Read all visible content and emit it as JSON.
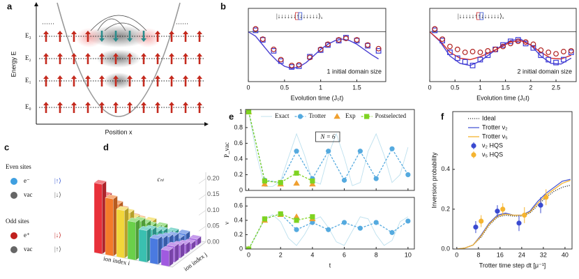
{
  "panel_labels": [
    "a",
    "b",
    "c",
    "d",
    "e",
    "f"
  ],
  "diagram": {
    "ylabel": "Energy E",
    "xlabel": "Position x",
    "levels": [
      "E₃",
      "E₂",
      "E₁",
      "E₀"
    ]
  },
  "sites": [
    {
      "title": "Even sites",
      "items": [
        {
          "particle": "e⁻",
          "state": "|↑⟩",
          "color": "#3f9fe0",
          "state_color": "#2a4fd0"
        },
        {
          "particle": "vac",
          "state": "|↓⟩",
          "color": "#666666",
          "state_color": "#555555"
        }
      ]
    },
    {
      "title": "Odd sites",
      "items": [
        {
          "particle": "e⁺",
          "state": "|↓⟩",
          "color": "#c0201e",
          "state_color": "#c0201e"
        },
        {
          "particle": "vac",
          "state": "|↑⟩",
          "color": "#666666",
          "state_color": "#555555"
        }
      ]
    }
  ],
  "chart_data": [
    {
      "type": "line",
      "xlabel": "Evolution time (J₀t)",
      "annotation": "1 initial domain size",
      "ket": "|↓↓↓↓↓↓↑↓↓↓↓↓↓⟩ₓ",
      "xlim": [
        0,
        1.9
      ],
      "ylim": [
        0,
        1
      ],
      "xticks": [
        0,
        0.5,
        1,
        1.5
      ],
      "hline": 0.68,
      "series": [
        {
          "color": "#4a3fd1",
          "line": "solid",
          "width": 1.4,
          "x": [
            0,
            0.1,
            0.2,
            0.3,
            0.4,
            0.5,
            0.6,
            0.7,
            0.8,
            0.9,
            1,
            1.1,
            1.2,
            1.3,
            1.4,
            1.5,
            1.6,
            1.7,
            1.8
          ],
          "values": [
            0.68,
            0.62,
            0.5,
            0.38,
            0.28,
            0.21,
            0.18,
            0.2,
            0.26,
            0.35,
            0.44,
            0.51,
            0.56,
            0.58,
            0.56,
            0.51,
            0.44,
            0.37,
            0.31
          ]
        },
        {
          "color": "#3b3bd6",
          "marker": "square",
          "hollow": true,
          "x": [
            0.1,
            0.2,
            0.35,
            0.45,
            0.6,
            0.7,
            0.85,
            1,
            1.1,
            1.25,
            1.35,
            1.5,
            1.65,
            1.8
          ],
          "values": [
            0.7,
            0.57,
            0.42,
            0.28,
            0.2,
            0.21,
            0.34,
            0.43,
            0.5,
            0.56,
            0.6,
            0.56,
            0.49,
            0.42
          ]
        },
        {
          "color": "#b0201e",
          "marker": "circle",
          "hollow": true,
          "x": [
            0.1,
            0.2,
            0.35,
            0.45,
            0.6,
            0.7,
            0.85,
            1,
            1.1,
            1.25,
            1.35,
            1.5,
            1.65,
            1.8
          ],
          "values": [
            0.72,
            0.58,
            0.44,
            0.3,
            0.22,
            0.23,
            0.33,
            0.44,
            0.51,
            0.57,
            0.59,
            0.57,
            0.5,
            0.45
          ]
        }
      ]
    },
    {
      "type": "line",
      "xlabel": "Evolution time (J₀t)",
      "annotation": "2 initial domain size",
      "ket": "|↓↓↓↓↓↑↑↓↓↓↓↓↓⟩ₓ",
      "xlim": [
        0,
        2.9
      ],
      "ylim": [
        0,
        1
      ],
      "xticks": [
        0,
        0.5,
        1,
        1.5,
        2,
        2.5
      ],
      "hline": 0.68,
      "series": [
        {
          "color": "#4a3fd1",
          "line": "solid",
          "width": 1.4,
          "x": [
            0,
            0.2,
            0.4,
            0.6,
            0.8,
            1,
            1.2,
            1.4,
            1.6,
            1.8,
            2,
            2.2,
            2.4,
            2.6,
            2.8
          ],
          "values": [
            0.68,
            0.55,
            0.35,
            0.25,
            0.22,
            0.28,
            0.38,
            0.48,
            0.56,
            0.58,
            0.5,
            0.35,
            0.25,
            0.24,
            0.32
          ]
        },
        {
          "color": "#d8302a",
          "line": "solid",
          "width": 1.4,
          "x": [
            0,
            0.2,
            0.4,
            0.6,
            0.8,
            1,
            1.2,
            1.4,
            1.6,
            1.8,
            2,
            2.2,
            2.4,
            2.6,
            2.8
          ],
          "values": [
            0.68,
            0.56,
            0.4,
            0.32,
            0.3,
            0.34,
            0.4,
            0.47,
            0.54,
            0.56,
            0.5,
            0.4,
            0.32,
            0.31,
            0.36
          ]
        },
        {
          "color": "#3b3bd6",
          "marker": "square",
          "hollow": true,
          "x": [
            0.1,
            0.25,
            0.4,
            0.55,
            0.7,
            0.85,
            1,
            1.15,
            1.3,
            1.45,
            1.6,
            1.75,
            1.9,
            2.05,
            2.2,
            2.35,
            2.5,
            2.65,
            2.8
          ],
          "values": [
            0.7,
            0.56,
            0.4,
            0.32,
            0.27,
            0.22,
            0.3,
            0.36,
            0.44,
            0.5,
            0.55,
            0.57,
            0.52,
            0.46,
            0.36,
            0.3,
            0.26,
            0.3,
            0.4
          ]
        },
        {
          "color": "#b0201e",
          "marker": "circle",
          "hollow": true,
          "x": [
            0.1,
            0.25,
            0.4,
            0.55,
            0.7,
            0.85,
            1,
            1.15,
            1.3,
            1.45,
            1.6,
            1.75,
            1.9,
            2.05,
            2.2,
            2.35,
            2.5,
            2.65,
            2.8
          ],
          "values": [
            0.72,
            0.58,
            0.48,
            0.44,
            0.4,
            0.41,
            0.4,
            0.42,
            0.44,
            0.48,
            0.52,
            0.55,
            0.54,
            0.51,
            0.43,
            0.4,
            0.38,
            0.41,
            0.42
          ]
        }
      ]
    },
    {
      "type": "line",
      "ylabel": "P_vac",
      "annotation": "N = 6",
      "legend": "top",
      "xticklabels": false,
      "xlim": [
        -0.2,
        10.4
      ],
      "ylim": [
        0,
        1.03
      ],
      "xticks": [
        0,
        2,
        4,
        6,
        8,
        10
      ],
      "yticks": [
        0,
        0.2,
        0.4,
        0.6,
        0.8,
        1
      ],
      "series": [
        {
          "name": "Exact",
          "color": "#bde0ee",
          "line": "solid",
          "width": 0.9,
          "x": [
            0,
            0.5,
            1,
            1.5,
            2,
            2.5,
            3,
            3.5,
            4,
            4.5,
            5,
            5.5,
            6,
            6.5,
            7,
            7.5,
            8,
            8.5,
            9,
            9.5,
            10
          ],
          "values": [
            1,
            0.45,
            0.05,
            0.05,
            0.12,
            0.42,
            0.72,
            0.45,
            0.12,
            0.08,
            0.45,
            0.72,
            0.42,
            0.06,
            0.1,
            0.5,
            0.72,
            0.45,
            0.1,
            0.2,
            0.55
          ]
        },
        {
          "name": "Trotter",
          "color": "#55aadf",
          "line": "dashed",
          "marker": "circle",
          "x": [
            0,
            1,
            2,
            3,
            4,
            5,
            6,
            7,
            8,
            9,
            10
          ],
          "values": [
            1,
            0.13,
            0.1,
            0.5,
            0.15,
            0.5,
            0.13,
            0.5,
            0.15,
            0.53,
            0.2
          ]
        },
        {
          "name": "Exp",
          "color": "#f0a030",
          "marker": "triangle",
          "x": [
            0,
            1,
            2,
            3,
            4
          ],
          "values": [
            1,
            0.08,
            0.08,
            0.09,
            0.08
          ]
        },
        {
          "name": "Postselected",
          "color": "#7ed321",
          "line": "dashed",
          "marker": "square",
          "x": [
            0,
            1,
            2,
            3,
            4
          ],
          "values": [
            1,
            0.12,
            0.1,
            0.22,
            0.12
          ]
        }
      ]
    },
    {
      "type": "line",
      "ylabel": "ν",
      "xlabel": "t",
      "xlim": [
        -0.2,
        10.4
      ],
      "ylim": [
        0,
        0.72
      ],
      "xticks": [
        0,
        2,
        4,
        6,
        8,
        10
      ],
      "yticks": [
        0,
        0.2,
        0.4,
        0.6
      ],
      "series": [
        {
          "color": "#bde0ee",
          "line": "solid",
          "width": 0.9,
          "x": [
            0,
            0.5,
            1,
            1.5,
            2,
            2.5,
            3,
            3.5,
            4,
            4.5,
            5,
            5.5,
            6,
            6.5,
            7,
            7.5,
            8,
            8.5,
            9,
            9.5,
            10
          ],
          "values": [
            0,
            0.2,
            0.42,
            0.48,
            0.38,
            0.15,
            0.05,
            0.2,
            0.4,
            0.45,
            0.3,
            0.1,
            0.05,
            0.25,
            0.45,
            0.42,
            0.2,
            0.05,
            0.12,
            0.38,
            0.45
          ]
        },
        {
          "color": "#55aadf",
          "line": "dashed",
          "marker": "circle",
          "x": [
            0,
            1,
            2,
            3,
            4,
            5,
            6,
            7,
            8,
            9,
            10
          ],
          "values": [
            0,
            0.42,
            0.49,
            0.27,
            0.37,
            0.27,
            0.37,
            0.29,
            0.37,
            0.23,
            0.39
          ]
        },
        {
          "color": "#f0a030",
          "marker": "triangle",
          "x": [
            0,
            1,
            2,
            3,
            4
          ],
          "values": [
            0,
            0.4,
            0.48,
            0.45,
            0.42
          ]
        },
        {
          "color": "#7ed321",
          "line": "dashed",
          "marker": "square",
          "x": [
            0,
            1,
            2,
            3,
            4
          ],
          "values": [
            0,
            0.42,
            0.49,
            0.4,
            0.45
          ]
        }
      ]
    },
    {
      "type": "line",
      "ylabel": "Inversion probability",
      "xlabel": "Trotter time step dt [μ⁻¹]",
      "legend": "upper left",
      "xlim": [
        -1.5,
        42.6
      ],
      "ylim": [
        0,
        0.69
      ],
      "xticks": [
        0,
        8,
        16,
        24,
        32,
        40
      ],
      "yticks": [
        {
          "value": 0,
          "label": "0.0"
        },
        0.2,
        0.4
      ],
      "series": [
        {
          "name": "Ideal",
          "color": "#333333",
          "line": "dotted",
          "x": [
            0,
            3,
            6,
            9,
            12,
            15,
            18,
            21,
            24,
            27,
            30,
            33,
            36,
            39,
            42
          ],
          "values": [
            0,
            0.005,
            0.02,
            0.06,
            0.12,
            0.16,
            0.17,
            0.165,
            0.165,
            0.18,
            0.22,
            0.26,
            0.29,
            0.31,
            0.32
          ]
        },
        {
          "name": "Trotter ν₂",
          "color": "#4a5ad6",
          "line": "solid",
          "x": [
            0,
            3,
            6,
            9,
            12,
            15,
            18,
            21,
            24,
            27,
            30,
            33,
            36,
            39,
            42
          ],
          "values": [
            0,
            0.005,
            0.02,
            0.07,
            0.13,
            0.17,
            0.18,
            0.17,
            0.17,
            0.19,
            0.24,
            0.28,
            0.31,
            0.34,
            0.35
          ]
        },
        {
          "name": "Trotter ν₅",
          "color": "#f5b430",
          "line": "solid",
          "x": [
            0,
            3,
            6,
            9,
            12,
            15,
            18,
            21,
            24,
            27,
            30,
            33,
            36,
            39,
            42
          ],
          "values": [
            0,
            0.005,
            0.02,
            0.065,
            0.125,
            0.165,
            0.175,
            0.17,
            0.17,
            0.185,
            0.23,
            0.27,
            0.3,
            0.33,
            0.345
          ]
        },
        {
          "name": "ν₂ HQS",
          "color": "#3a4ad0",
          "marker": "circle",
          "x": [
            7,
            15,
            23,
            31
          ],
          "values": [
            0.11,
            0.19,
            0.13,
            0.22
          ],
          "errors": [
            0.03,
            0.03,
            0.04,
            0.04
          ]
        },
        {
          "name": "ν₅ HQS",
          "color": "#f5b430",
          "marker": "circle",
          "x": [
            9,
            17,
            25,
            33
          ],
          "values": [
            0.14,
            0.2,
            0.17,
            0.26
          ],
          "errors": [
            0.03,
            0.03,
            0.04,
            0.04
          ]
        }
      ]
    },
    {
      "type": "bar3d",
      "title": "cₙₗ",
      "xlabel": "ion index i",
      "ylabel": "ion index j",
      "zlim": [
        0,
        0.22
      ],
      "zticks": [
        {
          "value": 0,
          "label": "0.00"
        },
        0.05,
        {
          "value": 0.1,
          "label": "0.10"
        },
        0.15,
        {
          "value": 0.2,
          "label": "0.20"
        }
      ],
      "colors": [
        "#e8303a",
        "#f47a2a",
        "#f2d63a",
        "#6ad04a",
        "#3ac0b0",
        "#4a7ae0",
        "#a05ae0"
      ],
      "values": [
        [
          0.22,
          0.17,
          0.13,
          0.1,
          0.08,
          0.06
        ],
        [
          0.18,
          0.15,
          0.12,
          0.09,
          0.07,
          0.05
        ],
        [
          0.15,
          0.13,
          0.1,
          0.08,
          0.06,
          0.05
        ],
        [
          0.12,
          0.11,
          0.09,
          0.07,
          0.05,
          0.04
        ],
        [
          0.1,
          0.09,
          0.07,
          0.06,
          0.04,
          0.03
        ],
        [
          0.08,
          0.07,
          0.06,
          0.05,
          0.03,
          0.03
        ],
        [
          0.05,
          0.05,
          0.04,
          0.03,
          0.02,
          0.02
        ]
      ]
    }
  ]
}
